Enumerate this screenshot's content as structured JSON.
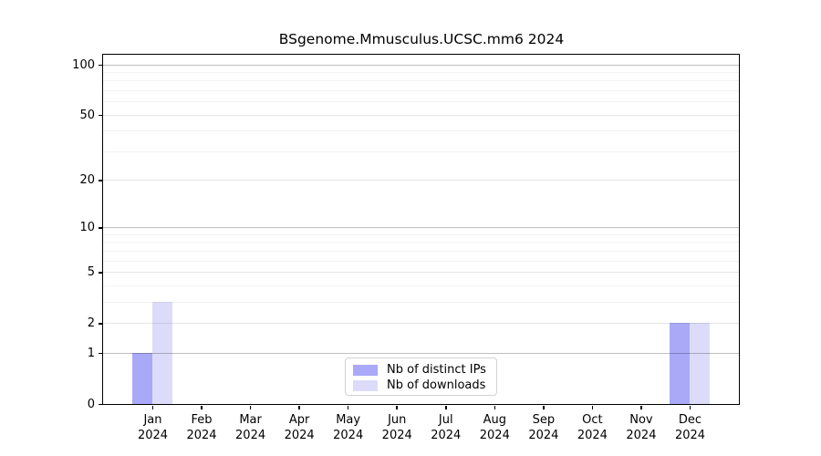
{
  "chart_data": {
    "type": "bar",
    "title": "BSgenome.Mmusculus.UCSC.mm6 2024",
    "categories": [
      "Jan 2024",
      "Feb 2024",
      "Mar 2024",
      "Apr 2024",
      "May 2024",
      "Jun 2024",
      "Jul 2024",
      "Aug 2024",
      "Sep 2024",
      "Oct 2024",
      "Nov 2024",
      "Dec 2024"
    ],
    "series": [
      {
        "name": "Nb of distinct IPs",
        "color": "#a9a9f8",
        "values": [
          1,
          0,
          0,
          0,
          0,
          0,
          0,
          0,
          0,
          0,
          0,
          2
        ]
      },
      {
        "name": "Nb of downloads",
        "color": "#dcdcfa",
        "values": [
          3,
          0,
          0,
          0,
          0,
          0,
          0,
          0,
          0,
          0,
          0,
          2
        ]
      }
    ],
    "xlabel": "",
    "ylabel": "",
    "y_scale": "log1p",
    "ylim": [
      0,
      115
    ],
    "y_ticks": [
      0,
      1,
      2,
      5,
      10,
      20,
      50,
      100
    ],
    "y_major_grid_values": [
      1,
      10,
      100
    ],
    "y_mid_grid_values": [
      2,
      5,
      20,
      50
    ],
    "y_minor_grid_values": [
      3,
      4,
      6,
      7,
      8,
      9,
      30,
      40,
      60,
      70,
      80,
      90
    ],
    "grid": true,
    "legend_position": "bottom-center",
    "colors": {
      "axis": "#000000",
      "major_grid": "rgba(0,0,0,0.25)",
      "mid_grid": "rgba(0,0,0,0.10)",
      "minor_grid": "rgba(0,0,0,0.05)",
      "background": "#ffffff"
    }
  }
}
